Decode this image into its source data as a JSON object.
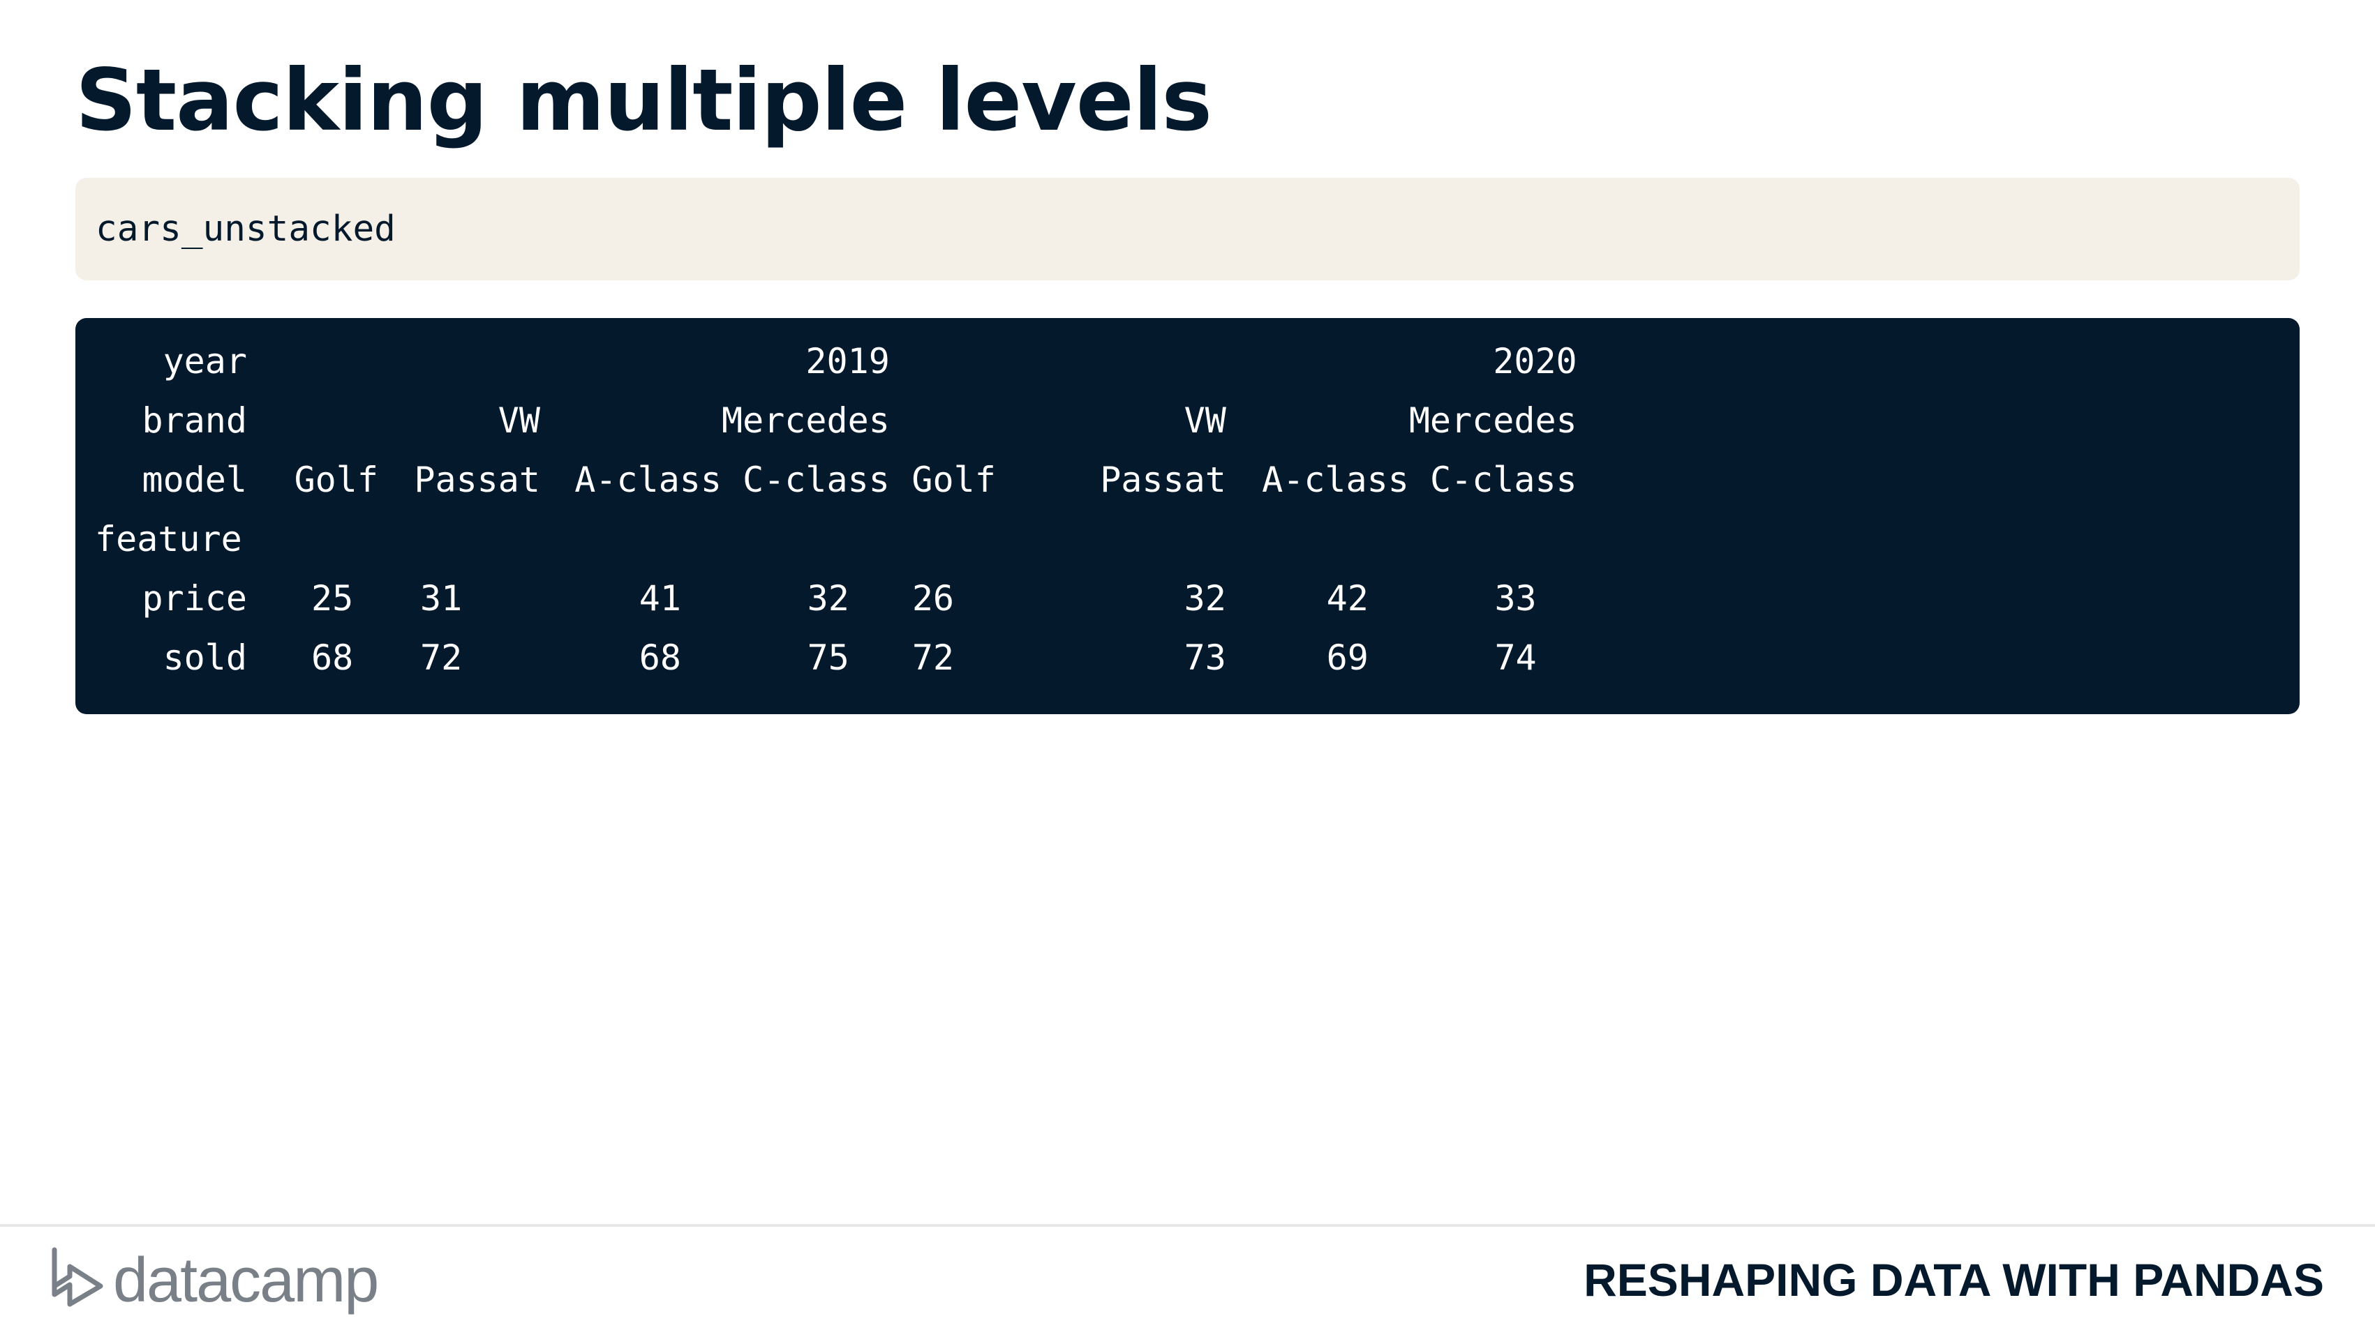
{
  "slide": {
    "title": "Stacking multiple levels"
  },
  "code_input": "cars_unstacked",
  "output": {
    "header_rows": [
      {
        "label": "year",
        "cells": [
          "",
          "",
          "",
          "2019",
          "",
          "",
          "",
          "2020"
        ]
      },
      {
        "label": "brand",
        "cells": [
          "",
          "VW",
          "",
          "Mercedes",
          "",
          "VW",
          "",
          "Mercedes"
        ]
      },
      {
        "label": "model",
        "cells": [
          "Golf",
          "Passat",
          "A-class",
          "C-class",
          "Golf",
          "Passat",
          "A-class",
          "C-class"
        ]
      },
      {
        "label": "feature",
        "cells": [
          "",
          "",
          "",
          "",
          "",
          "",
          "",
          ""
        ]
      }
    ],
    "data_rows": [
      {
        "label": "price",
        "cells": [
          "25",
          "31",
          "41",
          "32",
          "26",
          "32",
          "42",
          "33"
        ]
      },
      {
        "label": "sold",
        "cells": [
          "68",
          "72",
          "68",
          "75",
          "72",
          "73",
          "69",
          "74"
        ]
      }
    ]
  },
  "footer": {
    "logo_text": "datacamp",
    "course_name": "RESHAPING DATA WITH PANDAS"
  },
  "colors": {
    "navy": "#05192d",
    "code_bg": "#f4efe7",
    "logo_grey": "#7a8087"
  }
}
